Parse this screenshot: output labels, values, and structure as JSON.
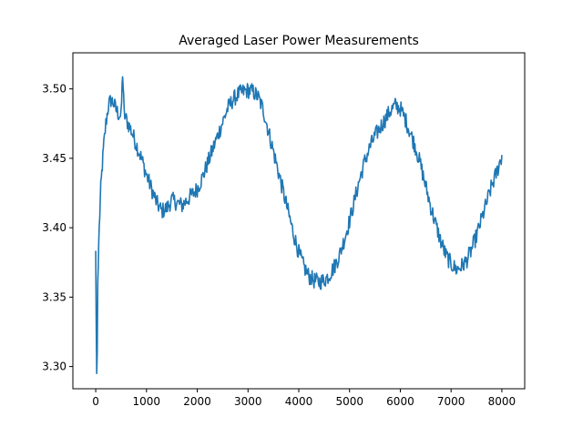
{
  "chart_data": {
    "type": "line",
    "title": "Averaged Laser Power Measurements",
    "xlabel": "",
    "ylabel": "",
    "xlim": [
      -450,
      8450
    ],
    "ylim": [
      3.284,
      3.526
    ],
    "x_ticks": [
      0,
      1000,
      2000,
      3000,
      4000,
      5000,
      6000,
      7000,
      8000
    ],
    "x_tick_labels": [
      "0",
      "1000",
      "2000",
      "3000",
      "4000",
      "5000",
      "6000",
      "7000",
      "8000"
    ],
    "y_ticks": [
      3.3,
      3.35,
      3.4,
      3.45,
      3.5
    ],
    "y_tick_labels": [
      "3.30",
      "3.35",
      "3.40",
      "3.45",
      "3.50"
    ],
    "grid": false,
    "line_color": "#1f77b4",
    "series": [
      {
        "x": [
          0,
          10,
          20,
          30,
          40,
          50,
          60,
          80,
          100,
          130,
          160,
          200,
          250,
          300,
          350,
          400,
          450,
          500,
          530,
          560,
          600,
          700,
          800,
          900,
          1000,
          1100,
          1200,
          1300,
          1400,
          1500,
          1600,
          1700,
          1800,
          1900,
          2000,
          2100,
          2200,
          2300,
          2400,
          2500,
          2600,
          2700,
          2800,
          2900,
          3000,
          3100,
          3200,
          3300,
          3400,
          3500,
          3600,
          3700,
          3800,
          3900,
          4000,
          4100,
          4200,
          4300,
          4400,
          4500,
          4600,
          4700,
          4800,
          4900,
          5000,
          5100,
          5200,
          5300,
          5400,
          5500,
          5600,
          5700,
          5800,
          5900,
          6000,
          6100,
          6200,
          6300,
          6400,
          6500,
          6600,
          6700,
          6800,
          6900,
          7000,
          7100,
          7200,
          7300,
          7400,
          7500,
          7600,
          7700,
          7800,
          7900,
          8000
        ],
        "values": [
          3.383,
          3.33,
          3.295,
          3.31,
          3.36,
          3.372,
          3.39,
          3.41,
          3.428,
          3.445,
          3.46,
          3.475,
          3.488,
          3.492,
          3.49,
          3.485,
          3.482,
          3.48,
          3.512,
          3.482,
          3.478,
          3.47,
          3.46,
          3.45,
          3.438,
          3.428,
          3.418,
          3.412,
          3.414,
          3.42,
          3.418,
          3.416,
          3.42,
          3.424,
          3.428,
          3.436,
          3.446,
          3.456,
          3.466,
          3.476,
          3.486,
          3.492,
          3.496,
          3.498,
          3.499,
          3.498,
          3.494,
          3.485,
          3.47,
          3.455,
          3.44,
          3.425,
          3.41,
          3.395,
          3.382,
          3.372,
          3.365,
          3.362,
          3.361,
          3.362,
          3.366,
          3.372,
          3.38,
          3.392,
          3.405,
          3.42,
          3.435,
          3.448,
          3.458,
          3.466,
          3.472,
          3.478,
          3.484,
          3.488,
          3.486,
          3.478,
          3.468,
          3.458,
          3.445,
          3.43,
          3.415,
          3.402,
          3.39,
          3.38,
          3.374,
          3.37,
          3.372,
          3.376,
          3.384,
          3.394,
          3.406,
          3.418,
          3.43,
          3.44,
          3.452
        ]
      }
    ]
  }
}
